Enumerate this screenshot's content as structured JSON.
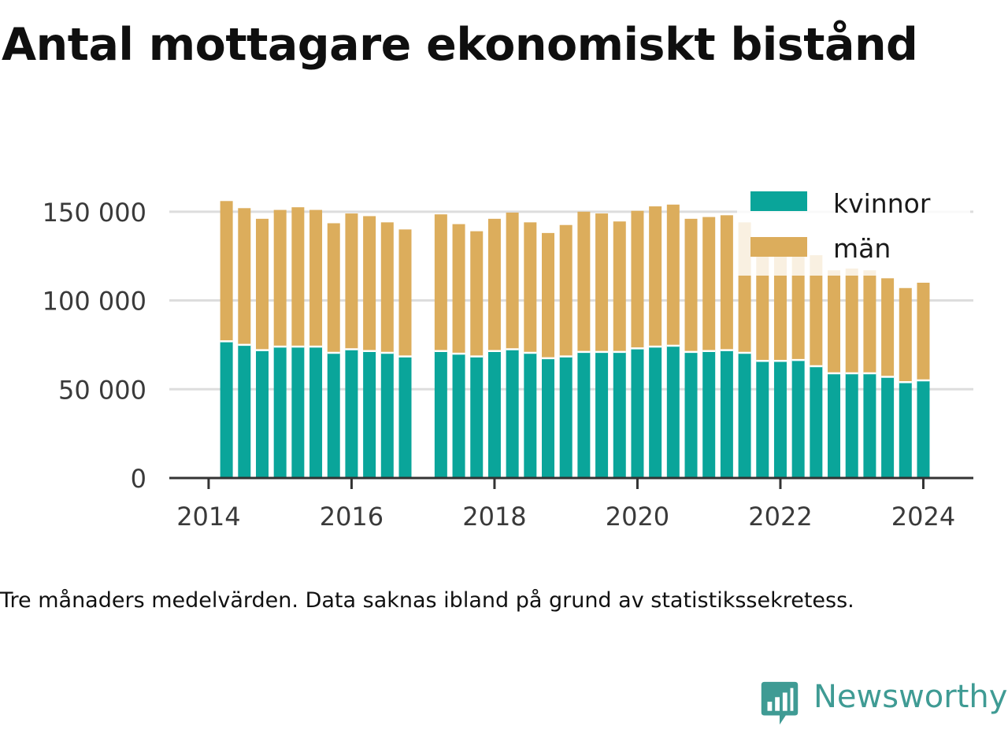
{
  "title": "Antal mottagare ekonomiskt bistånd",
  "caption": "Tre månaders medelvärden. Data saknas ibland på grund av statistikssekretess.",
  "brand": {
    "name": "Newsworthy",
    "icon": "newsworthy-logo-icon",
    "color": "#3f9b94"
  },
  "colors": {
    "kvinnor": "#0aa59a",
    "man": "#dcad5c",
    "grid": "#dddddd",
    "axis": "#333333"
  },
  "chart_data": {
    "type": "bar",
    "stacked": true,
    "x": [
      2014.25,
      2014.5,
      2014.75,
      2015.0,
      2015.25,
      2015.5,
      2015.75,
      2016.0,
      2016.25,
      2016.5,
      2016.75,
      2017.25,
      2017.5,
      2017.75,
      2018.0,
      2018.25,
      2018.5,
      2018.75,
      2019.0,
      2019.25,
      2019.5,
      2019.75,
      2020.0,
      2020.25,
      2020.5,
      2020.75,
      2021.0,
      2021.25,
      2021.5,
      2021.75,
      2022.0,
      2022.25,
      2022.5,
      2022.75,
      2023.0,
      2023.25,
      2023.5,
      2023.75,
      2024.0
    ],
    "series": [
      {
        "name": "kvinnor",
        "values": [
          77000,
          75000,
          72000,
          74000,
          74000,
          74000,
          70500,
          72500,
          71500,
          70500,
          68500,
          71500,
          70000,
          68500,
          71500,
          72500,
          70500,
          67500,
          68500,
          71000,
          71000,
          71000,
          73000,
          74000,
          74500,
          71000,
          71500,
          72000,
          70500,
          66000,
          66000,
          66500,
          63000,
          59000,
          59000,
          59000,
          57000,
          54000,
          55000
        ]
      },
      {
        "name": "män",
        "values": [
          79000,
          77000,
          74000,
          77000,
          78500,
          77000,
          73000,
          76500,
          76000,
          73500,
          71500,
          77000,
          73000,
          70500,
          74500,
          77000,
          73500,
          70500,
          74000,
          79000,
          78000,
          73500,
          77500,
          79000,
          79500,
          75000,
          75500,
          76000,
          73500,
          66000,
          66000,
          66500,
          62500,
          58000,
          59000,
          58000,
          55500,
          53000,
          55000
        ]
      }
    ],
    "xlim": [
      2013.45,
      2024.7
    ],
    "xticks": [
      2014,
      2016,
      2018,
      2020,
      2022,
      2024
    ],
    "ylim": [
      0,
      165000
    ],
    "yticks": [
      0,
      50000,
      100000,
      150000
    ],
    "ytick_labels": [
      "0",
      "50 000",
      "100 000",
      "150 000"
    ],
    "grid": true,
    "legend": [
      "kvinnor",
      "män"
    ],
    "legend_position": "top-right"
  }
}
